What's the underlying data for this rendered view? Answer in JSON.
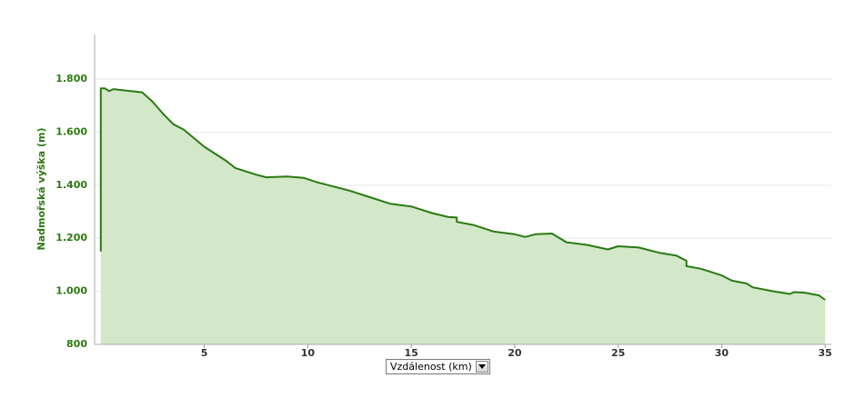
{
  "chart_data": {
    "type": "area",
    "y_label": "Nadmořská výška (m)",
    "x_label": "Vzdálenost (km)",
    "color": "#2a7a12",
    "fill": "#d2e8c9",
    "grid": true,
    "xlim": [
      -0.3,
      35.3
    ],
    "ylim": [
      800,
      1968
    ],
    "xticks": [
      5,
      10,
      15,
      20,
      25,
      30,
      35
    ],
    "yticks": [
      800,
      {
        "value": 1000,
        "label": "1.000"
      },
      {
        "value": 1200,
        "label": "1.200"
      },
      {
        "value": 1400,
        "label": "1.400"
      },
      {
        "value": 1600,
        "label": "1.600"
      },
      {
        "value": 1800,
        "label": "1.800"
      }
    ],
    "x": [
      0,
      0,
      0.2,
      0.4,
      0.6,
      2,
      2.5,
      3,
      3.5,
      4,
      5,
      6,
      6.5,
      7.5,
      8,
      9,
      9.8,
      10.5,
      11,
      12,
      13,
      14,
      15,
      16,
      16.8,
      17.2,
      17.2,
      18,
      19,
      20,
      20.5,
      21,
      21.8,
      22.5,
      23.5,
      24.5,
      25,
      26,
      27,
      27.8,
      28.3,
      28.3,
      29,
      30,
      30.5,
      31.2,
      31.5,
      32.5,
      33.3,
      33.5,
      34,
      34.7,
      35
    ],
    "values": [
      1150,
      1765,
      1765,
      1755,
      1762,
      1750,
      1715,
      1670,
      1630,
      1610,
      1545,
      1495,
      1465,
      1440,
      1430,
      1433,
      1428,
      1410,
      1400,
      1380,
      1355,
      1330,
      1320,
      1295,
      1280,
      1278,
      1262,
      1250,
      1225,
      1215,
      1205,
      1215,
      1218,
      1185,
      1175,
      1158,
      1170,
      1165,
      1145,
      1135,
      1115,
      1095,
      1085,
      1060,
      1040,
      1030,
      1015,
      1000,
      990,
      997,
      995,
      985,
      968
    ]
  }
}
